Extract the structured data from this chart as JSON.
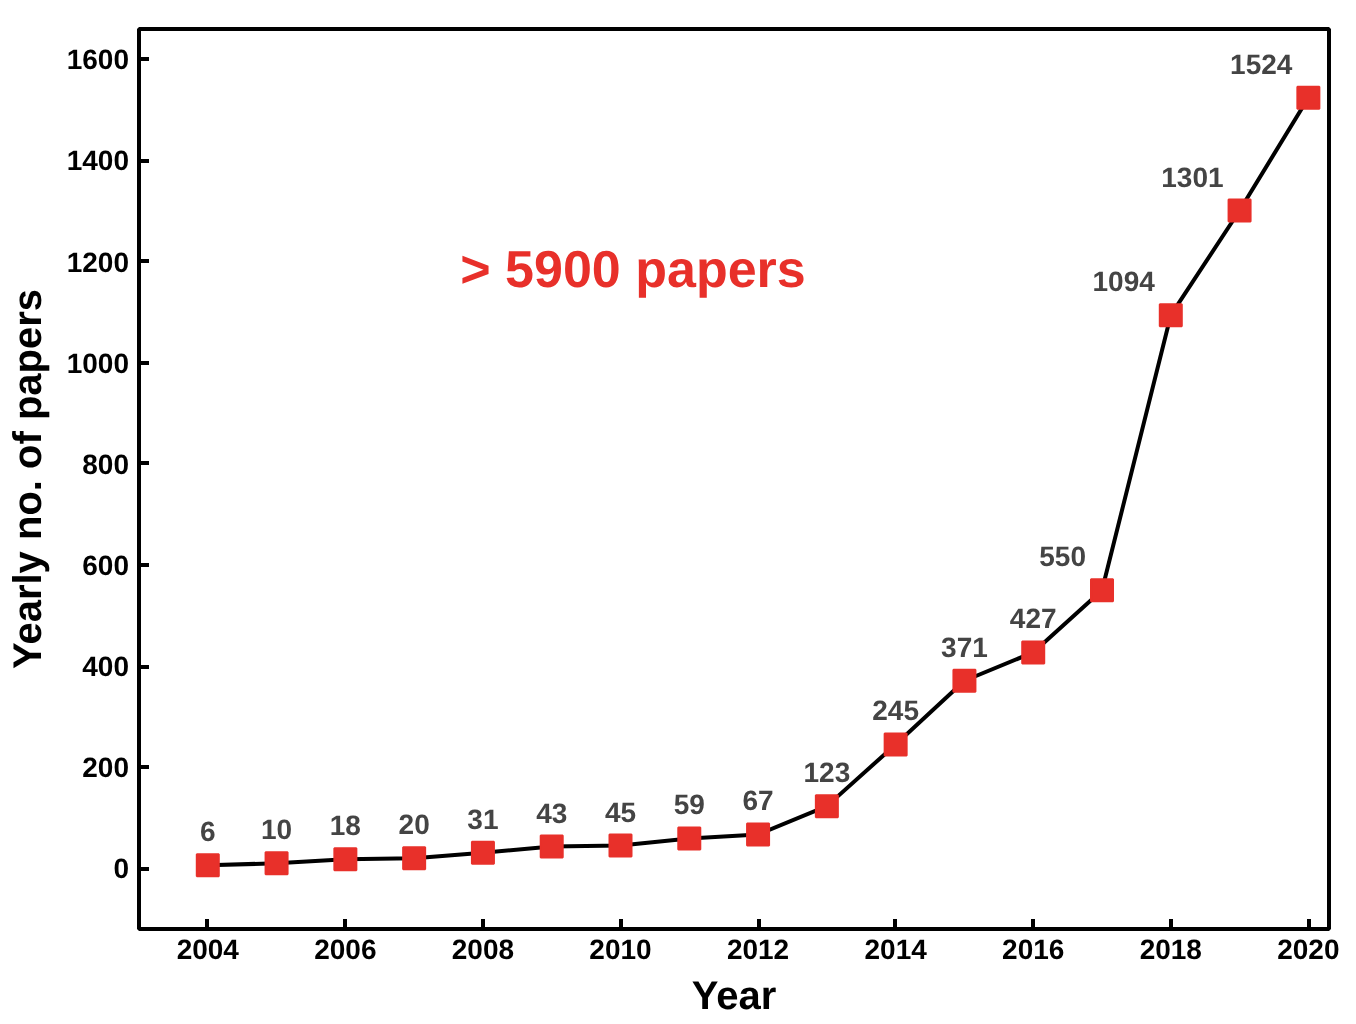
{
  "chart_data": {
    "type": "line",
    "xlabel": "Year",
    "ylabel": "Yearly no. of papers",
    "x": [
      2004,
      2005,
      2006,
      2007,
      2008,
      2009,
      2010,
      2011,
      2012,
      2013,
      2014,
      2015,
      2016,
      2017,
      2018,
      2019,
      2020
    ],
    "series": [
      {
        "color": "#e8302a",
        "values": [
          6,
          10,
          18,
          20,
          31,
          43,
          45,
          59,
          67,
          123,
          245,
          371,
          427,
          550,
          1094,
          1301,
          1524
        ]
      }
    ],
    "xlim": [
      2003,
      2020.3
    ],
    "xticks": [
      2004,
      2006,
      2008,
      2010,
      2012,
      2014,
      2016,
      2018,
      2020
    ],
    "ylim": [
      -120,
      1660
    ],
    "yticks": [
      0,
      200,
      400,
      600,
      800,
      1000,
      1200,
      1400,
      1600
    ],
    "annotations": [
      "> 5900 papers"
    ],
    "marker": "square",
    "line_style": "solid",
    "data_labels": true,
    "grid": false
  }
}
